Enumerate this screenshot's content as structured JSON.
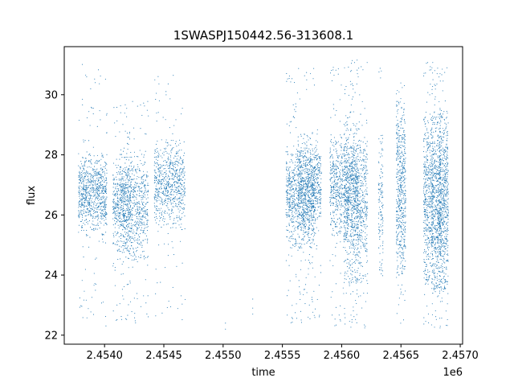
{
  "chart_data": {
    "type": "scatter",
    "title": "1SWASPJ150442.56-313608.1",
    "xlabel": "time",
    "ylabel": "flux",
    "x_offset_label": "1e6",
    "xlim": [
      2.45366,
      2.45702
    ],
    "ylim": [
      21.7,
      31.6
    ],
    "x_ticks": [
      2.454,
      2.4545,
      2.455,
      2.4555,
      2.456,
      2.4565,
      2.457
    ],
    "x_tick_labels": [
      "2.4540",
      "2.4545",
      "2.4550",
      "2.4555",
      "2.4560",
      "2.4565",
      "2.4570"
    ],
    "y_ticks": [
      22,
      24,
      26,
      28,
      30
    ],
    "y_tick_labels": [
      "22",
      "24",
      "26",
      "28",
      "30"
    ],
    "grid": false,
    "marker_color": "#1f77b4",
    "clusters": [
      {
        "center": 2.4539,
        "width": 0.00012,
        "core": [
          25.6,
          27.8
        ],
        "range": [
          22.2,
          31.1
        ],
        "n": 850
      },
      {
        "center": 2.45415,
        "width": 8e-05,
        "core": [
          25.0,
          27.6
        ],
        "range": [
          22.4,
          29.9
        ],
        "n": 450
      },
      {
        "center": 2.45425,
        "width": 0.00012,
        "core": [
          24.8,
          27.9
        ],
        "range": [
          22.3,
          29.8
        ],
        "n": 700
      },
      {
        "center": 2.45455,
        "width": 0.00013,
        "core": [
          25.8,
          28.2
        ],
        "range": [
          22.1,
          30.9
        ],
        "n": 750
      },
      {
        "center": 2.45565,
        "width": 0.00012,
        "core": [
          25.2,
          28.0
        ],
        "range": [
          22.3,
          30.9
        ],
        "n": 850
      },
      {
        "center": 2.45573,
        "width": 0.0001,
        "core": [
          25.6,
          28.4
        ],
        "range": [
          22.3,
          28.9
        ],
        "n": 650
      },
      {
        "center": 2.45602,
        "width": 0.00012,
        "core": [
          25.6,
          28.4
        ],
        "range": [
          22.2,
          31.2
        ],
        "n": 850
      },
      {
        "center": 2.45612,
        "width": 0.0001,
        "core": [
          24.0,
          28.8
        ],
        "range": [
          22.2,
          31.1
        ],
        "n": 850
      },
      {
        "center": 2.45633,
        "width": 2e-05,
        "core": [
          24.2,
          28.4
        ],
        "range": [
          23.8,
          31.0
        ],
        "n": 130
      },
      {
        "center": 2.4565,
        "width": 4e-05,
        "core": [
          24.3,
          29.6
        ],
        "range": [
          22.3,
          30.4
        ],
        "n": 550
      },
      {
        "center": 2.45673,
        "width": 4e-05,
        "core": [
          24.0,
          29.0
        ],
        "range": [
          22.2,
          31.1
        ],
        "n": 500
      },
      {
        "center": 2.4568,
        "width": 4e-05,
        "core": [
          23.8,
          29.0
        ],
        "range": [
          22.2,
          31.1
        ],
        "n": 600
      },
      {
        "center": 2.45686,
        "width": 4e-05,
        "core": [
          23.8,
          29.2
        ],
        "range": [
          22.1,
          31.0
        ],
        "n": 600
      }
    ],
    "isolated_points": [
      {
        "x": 2.45502,
        "y": 22.4
      },
      {
        "x": 2.45502,
        "y": 22.2
      },
      {
        "x": 2.45525,
        "y": 23.2
      },
      {
        "x": 2.45525,
        "y": 22.9
      },
      {
        "x": 2.45525,
        "y": 22.7
      }
    ]
  }
}
